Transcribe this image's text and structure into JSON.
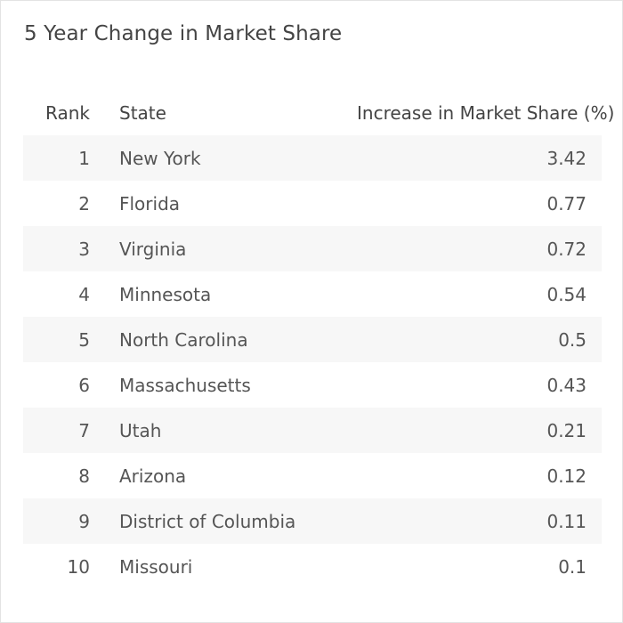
{
  "chart_data": {
    "type": "table",
    "title": "5 Year Change in Market Share",
    "columns": [
      "Rank",
      "State",
      "Increase in Market Share (%)"
    ],
    "rows": [
      {
        "rank": "1",
        "state": "New York",
        "value": "3.42"
      },
      {
        "rank": "2",
        "state": "Florida",
        "value": "0.77"
      },
      {
        "rank": "3",
        "state": "Virginia",
        "value": "0.72"
      },
      {
        "rank": "4",
        "state": "Minnesota",
        "value": "0.54"
      },
      {
        "rank": "5",
        "state": "North Carolina",
        "value": "0.5"
      },
      {
        "rank": "6",
        "state": "Massachusetts",
        "value": "0.43"
      },
      {
        "rank": "7",
        "state": "Utah",
        "value": "0.21"
      },
      {
        "rank": "8",
        "state": "Arizona",
        "value": "0.12"
      },
      {
        "rank": "9",
        "state": "District of Columbia",
        "value": "0.11"
      },
      {
        "rank": "10",
        "state": "Missouri",
        "value": "0.1"
      }
    ]
  },
  "colors": {
    "text": "#444444",
    "stripe": "#f7f7f7",
    "border": "#e3e3e3"
  }
}
